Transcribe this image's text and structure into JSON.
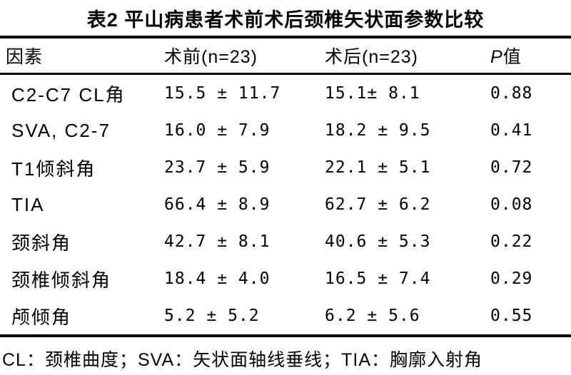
{
  "title": "表2 平山病患者术前术后颈椎矢状面参数比较",
  "table": {
    "header": {
      "factor": "因素",
      "pre": "术前(n=23)",
      "post": "术后(n=23)",
      "p_italic": "P",
      "p_rest": "值"
    },
    "rows": [
      {
        "factor": "C2-C7 CL角",
        "pre": "15.5 ± 11.7",
        "post": "15.1± 8.1",
        "p": "0.88"
      },
      {
        "factor": "SVA, C2-7",
        "pre": "16.0 ± 7.9",
        "post": "18.2 ± 9.5",
        "p": "0.41"
      },
      {
        "factor": "T1倾斜角",
        "pre": "23.7 ± 5.9",
        "post": "22.1 ± 5.1",
        "p": "0.72"
      },
      {
        "factor": "TIA",
        "pre": "66.4 ± 8.9",
        "post": "62.7 ± 6.2",
        "p": "0.08"
      },
      {
        "factor": "颈斜角",
        "pre": "42.7 ± 8.1",
        "post": "40.6 ± 5.3",
        "p": "0.22"
      },
      {
        "factor": "颈椎倾斜角",
        "pre": "18.4 ± 4.0",
        "post": "16.5 ± 7.4",
        "p": "0.29"
      },
      {
        "factor": "颅倾角",
        "pre": "5.2 ± 5.2",
        "post": "6.2 ± 5.6",
        "p": "0.55"
      }
    ]
  },
  "footnote": "CL：颈椎曲度；SVA：矢状面轴线垂线；TIA：胸廓入射角",
  "colors": {
    "text": "#000000",
    "background": "#ffffff",
    "rule": "#000000"
  },
  "chart_data": {
    "type": "table",
    "title": "表2 平山病患者术前术后颈椎矢状面参数比较",
    "columns": [
      "因素",
      "术前(n=23)",
      "术后(n=23)",
      "P值"
    ],
    "rows": [
      [
        "C2-C7 CL角",
        "15.5 ± 11.7",
        "15.1± 8.1",
        "0.88"
      ],
      [
        "SVA, C2-7",
        "16.0 ± 7.9",
        "18.2 ± 9.5",
        "0.41"
      ],
      [
        "T1倾斜角",
        "23.7 ± 5.9",
        "22.1 ± 5.1",
        "0.72"
      ],
      [
        "TIA",
        "66.4 ± 8.9",
        "62.7 ± 6.2",
        "0.08"
      ],
      [
        "颈斜角",
        "42.7 ± 8.1",
        "40.6 ± 5.3",
        "0.22"
      ],
      [
        "颈椎倾斜角",
        "18.4 ± 4.0",
        "16.5 ± 7.4",
        "0.29"
      ],
      [
        "颅倾角",
        "5.2 ± 5.2",
        "6.2 ± 5.6",
        "0.55"
      ]
    ],
    "footnote": "CL：颈椎曲度；SVA：矢状面轴线垂线；TIA：胸廓入射角"
  }
}
